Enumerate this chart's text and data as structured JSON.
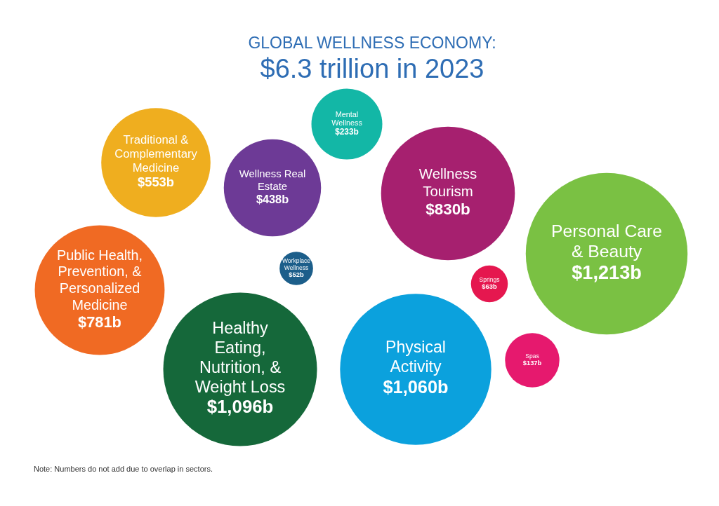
{
  "chart_data": {
    "type": "other",
    "title": "GLOBAL WELLNESS ECONOMY:",
    "subtitle": "$6.3 trillion in 2023",
    "categories": [
      "Traditional & Complementary Medicine",
      "Wellness Real Estate",
      "Mental Wellness",
      "Wellness Tourism",
      "Personal Care & Beauty",
      "Public Health, Prevention, & Personalized Medicine",
      "Workplace Wellness",
      "Springs",
      "Healthy Eating, Nutrition, & Weight Loss",
      "Physical Activity",
      "Spas"
    ],
    "values": [
      553,
      438,
      233,
      830,
      1213,
      781,
      52,
      63,
      1096,
      1060,
      137
    ],
    "value_labels": [
      "$553b",
      "$438b",
      "$233b",
      "$830b",
      "$1,213b",
      "$781b",
      "$52b",
      "$63b",
      "$1,096b",
      "$1,060b",
      "$137b"
    ],
    "colors": [
      "#efae1f",
      "#6d3a96",
      "#13b7a6",
      "#a6206f",
      "#7ac143",
      "#f06a23",
      "#1c5e8a",
      "#e5174f",
      "#15683a",
      "#0ba1dd",
      "#e6196e"
    ],
    "annotations": [
      "Note: Numbers do not add due to overlap in sectors."
    ]
  }
}
